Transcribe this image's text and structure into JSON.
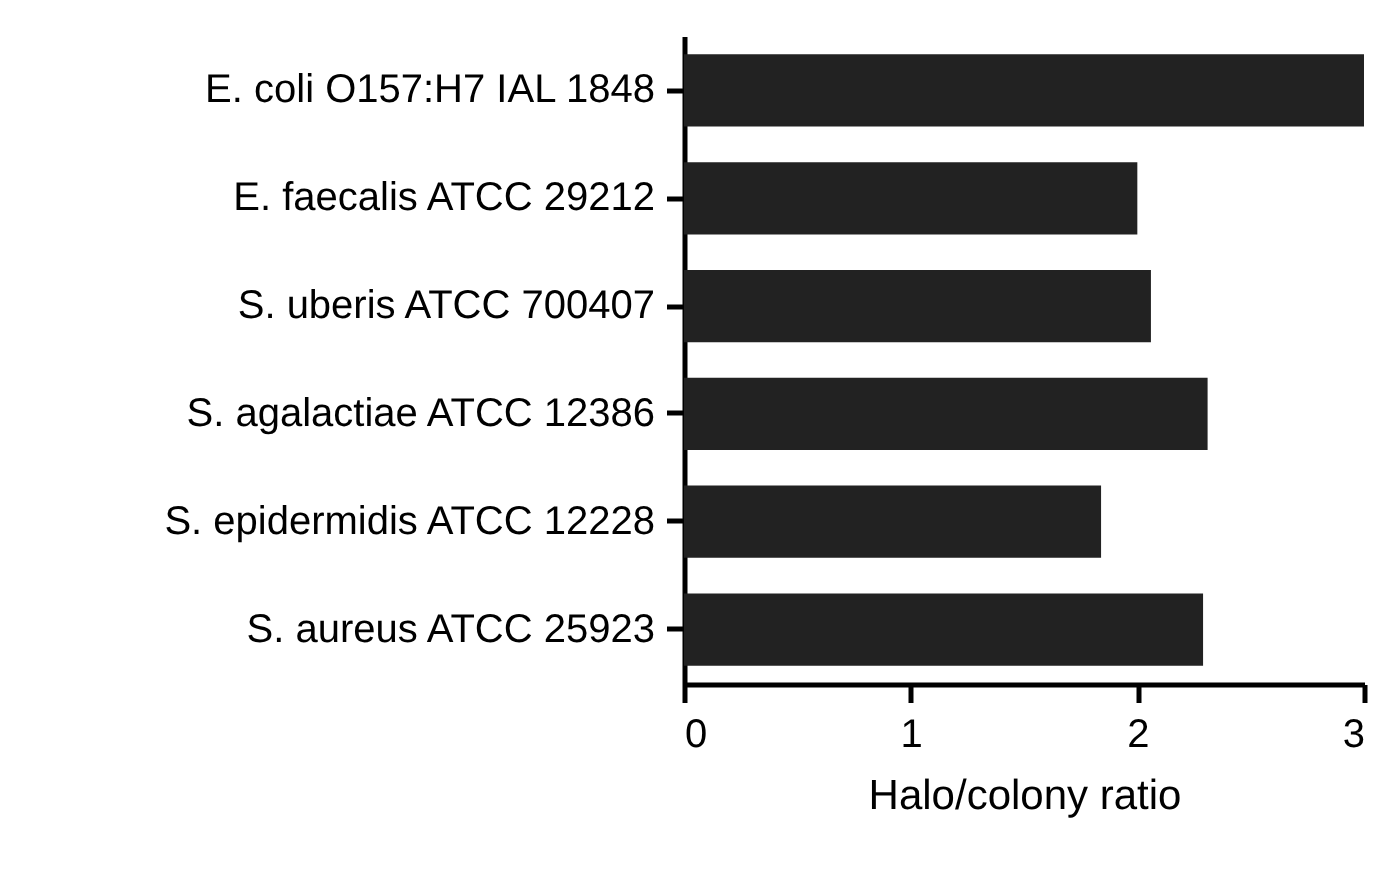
{
  "chart_data": {
    "type": "bar",
    "orientation": "horizontal",
    "categories": [
      "E. coli O157:H7 IAL 1848",
      "E. faecalis ATCC 29212",
      "S. uberis ATCC 700407",
      "S. agalactiae ATCC 12386",
      "S. epidermidis ATCC 12228",
      "S. aureus ATCC 25923"
    ],
    "values": [
      3.0,
      2.0,
      2.06,
      2.31,
      1.84,
      2.29
    ],
    "color": "#222222",
    "xlabel": "Halo/colony ratio",
    "xlim": [
      0,
      3
    ],
    "xticks": [
      0,
      1,
      2,
      3
    ],
    "grid": false
  }
}
